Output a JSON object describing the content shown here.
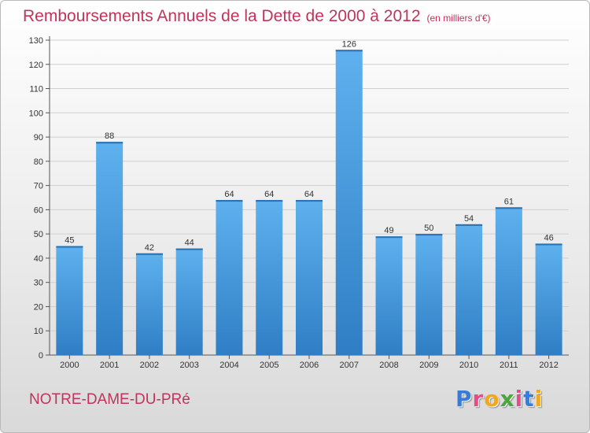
{
  "title": "Remboursements Annuels de la Dette de 2000 à 2012",
  "subtitle": "(en milliers d'€)",
  "commune": "NOTRE-DAME-DU-PRé",
  "logo": {
    "letters": [
      "P",
      "r",
      "o",
      "x",
      "i",
      "t",
      "i"
    ],
    "colors": [
      "#3a7bd5",
      "#e84a8a",
      "#f2a81d",
      "#4aa83a",
      "#e84a8a",
      "#3a7bd5",
      "#f2a81d"
    ]
  },
  "colors": {
    "bar": "#4a9de0",
    "bar_light": "#5eb1ee",
    "bar_dark": "#2f7ec5",
    "title": "#c0345a"
  },
  "chart_data": {
    "type": "bar",
    "categories": [
      "2000",
      "2001",
      "2002",
      "2003",
      "2004",
      "2005",
      "2006",
      "2007",
      "2008",
      "2009",
      "2010",
      "2011",
      "2012"
    ],
    "values": [
      45,
      88,
      42,
      44,
      64,
      64,
      64,
      126,
      49,
      50,
      54,
      61,
      46
    ],
    "ylim": [
      0,
      130
    ],
    "yticks": [
      0,
      10,
      20,
      30,
      40,
      50,
      60,
      70,
      80,
      90,
      100,
      110,
      120,
      130
    ],
    "grid": true,
    "legend": "none"
  }
}
